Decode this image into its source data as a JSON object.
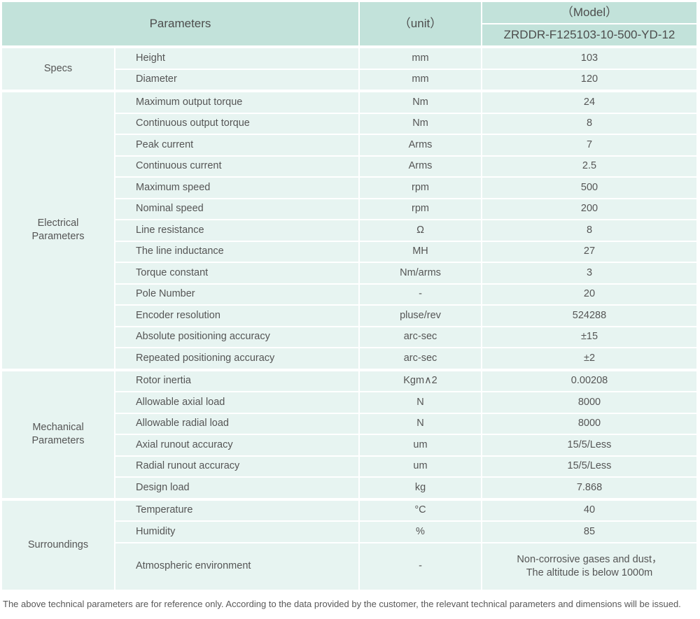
{
  "table": {
    "header": {
      "parameters_label": "Parameters",
      "unit_label": "（unit）",
      "model_label": "（Model）",
      "model_value": "ZRDDR-F125103-10-500-YD-12"
    },
    "groups": [
      {
        "name": "Specs",
        "rows": [
          {
            "parameter": "Height",
            "unit": "mm",
            "value": "103"
          },
          {
            "parameter": "Diameter",
            "unit": "mm",
            "value": "120"
          }
        ]
      },
      {
        "name": "Electrical Parameters",
        "rows": [
          {
            "parameter": "Maximum output torque",
            "unit": "Nm",
            "value": "24"
          },
          {
            "parameter": "Continuous output torque",
            "unit": "Nm",
            "value": "8"
          },
          {
            "parameter": "Peak current",
            "unit": "Arms",
            "value": "7"
          },
          {
            "parameter": "Continuous current",
            "unit": "Arms",
            "value": "2.5"
          },
          {
            "parameter": "Maximum speed",
            "unit": "rpm",
            "value": "500"
          },
          {
            "parameter": "Nominal speed",
            "unit": "rpm",
            "value": "200"
          },
          {
            "parameter": "Line resistance",
            "unit": "Ω",
            "value": "8"
          },
          {
            "parameter": "The line inductance",
            "unit": "MH",
            "value": "27"
          },
          {
            "parameter": "Torque constant",
            "unit": "Nm/arms",
            "value": "3"
          },
          {
            "parameter": "Pole Number",
            "unit": "-",
            "value": "20"
          },
          {
            "parameter": "Encoder resolution",
            "unit": "pluse/rev",
            "value": "524288"
          },
          {
            "parameter": "Absolute positioning accuracy",
            "unit": "arc-sec",
            "value": "±15"
          },
          {
            "parameter": "Repeated positioning accuracy",
            "unit": "arc-sec",
            "value": "±2"
          }
        ]
      },
      {
        "name": "Mechanical Parameters",
        "rows": [
          {
            "parameter": "Rotor inertia",
            "unit": "Kgm∧2",
            "value": "0.00208"
          },
          {
            "parameter": "Allowable axial load",
            "unit": "N",
            "value": "8000"
          },
          {
            "parameter": "Allowable radial load",
            "unit": "N",
            "value": "8000"
          },
          {
            "parameter": "Axial runout accuracy",
            "unit": "um",
            "value": "15/5/Less"
          },
          {
            "parameter": "Radial runout accuracy",
            "unit": "um",
            "value": "15/5/Less"
          },
          {
            "parameter": "Design load",
            "unit": "kg",
            "value": "7.868"
          }
        ]
      },
      {
        "name": "Surroundings",
        "rows": [
          {
            "parameter": "Temperature",
            "unit": "°C",
            "value": "40"
          },
          {
            "parameter": "Humidity",
            "unit": "%",
            "value": "85"
          },
          {
            "parameter": "Atmospheric environment",
            "unit": "-",
            "value": "Non-corrosive gases and dust，\nThe altitude is below 1000m"
          }
        ]
      }
    ],
    "footnote": "The above technical parameters are for reference only. According to the data provided by the customer, the relevant technical parameters and dimensions will be issued."
  },
  "colors": {
    "header_bg": "#c2e2da",
    "row_bg": "#e7f4f1",
    "text": "#555555"
  }
}
